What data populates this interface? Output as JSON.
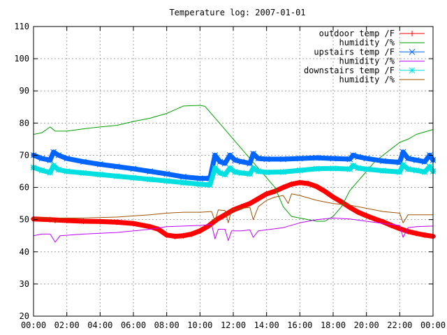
{
  "chart_data": {
    "type": "line",
    "title": "Temperature log: 2007-01-01",
    "xlabel": "",
    "ylabel": "",
    "xlim": [
      0,
      24
    ],
    "ylim": [
      20,
      110
    ],
    "grid": true,
    "legend_position": "top-right",
    "x_tick_labels": [
      "00:00",
      "02:00",
      "04:00",
      "06:00",
      "08:00",
      "10:00",
      "12:00",
      "14:00",
      "16:00",
      "18:00",
      "20:00",
      "22:00",
      "00:00"
    ],
    "y_tick_labels": [
      "20",
      "30",
      "40",
      "50",
      "60",
      "70",
      "80",
      "90",
      "100",
      "110"
    ],
    "series": [
      {
        "name": "outdoor temp /F",
        "color": "#ff0000",
        "marker": "plus",
        "points": [
          [
            0,
            50.2
          ],
          [
            1,
            50
          ],
          [
            2,
            49.7
          ],
          [
            3,
            49.5
          ],
          [
            4,
            49.4
          ],
          [
            5,
            49.2
          ],
          [
            6,
            48.8
          ],
          [
            7,
            47.8
          ],
          [
            7.5,
            47
          ],
          [
            8,
            45.2
          ],
          [
            8.5,
            44.8
          ],
          [
            9,
            45
          ],
          [
            9.5,
            45.5
          ],
          [
            10,
            46.5
          ],
          [
            10.5,
            48
          ],
          [
            11,
            50
          ],
          [
            11.5,
            51.5
          ],
          [
            12,
            53
          ],
          [
            12.5,
            54
          ],
          [
            13,
            55
          ],
          [
            13.5,
            56.5
          ],
          [
            14,
            58
          ],
          [
            14.5,
            58.8
          ],
          [
            15,
            60
          ],
          [
            15.5,
            61
          ],
          [
            16,
            61.5
          ],
          [
            16.5,
            61.2
          ],
          [
            17,
            60.3
          ],
          [
            17.5,
            58.8
          ],
          [
            18,
            57
          ],
          [
            18.5,
            55.5
          ],
          [
            19,
            53.8
          ],
          [
            19.5,
            52.3
          ],
          [
            20,
            51.2
          ],
          [
            20.5,
            50.2
          ],
          [
            21,
            49.3
          ],
          [
            21.5,
            48.2
          ],
          [
            22,
            47.2
          ],
          [
            22.5,
            46.3
          ],
          [
            23,
            45.7
          ],
          [
            23.5,
            45.2
          ],
          [
            24,
            44.8
          ]
        ]
      },
      {
        "name": "humidity /%",
        "color": "#00a000",
        "marker": "none",
        "points": [
          [
            0,
            76.5
          ],
          [
            0.5,
            77
          ],
          [
            1,
            78.8
          ],
          [
            1.3,
            77.5
          ],
          [
            2,
            77.5
          ],
          [
            3,
            78.2
          ],
          [
            4,
            78.8
          ],
          [
            5,
            79.3
          ],
          [
            6,
            80.5
          ],
          [
            7,
            81.5
          ],
          [
            8,
            83
          ],
          [
            9,
            85.3
          ],
          [
            10,
            85.5
          ],
          [
            10.3,
            85.2
          ],
          [
            11,
            81
          ],
          [
            12,
            75
          ],
          [
            13,
            69
          ],
          [
            14,
            63
          ],
          [
            14.5,
            60
          ],
          [
            15,
            54
          ],
          [
            15.5,
            51
          ],
          [
            16,
            50.5
          ],
          [
            16.5,
            50
          ],
          [
            17,
            49.5
          ],
          [
            17.5,
            49.5
          ],
          [
            18,
            51
          ],
          [
            18.5,
            54
          ],
          [
            19,
            59
          ],
          [
            19.5,
            62
          ],
          [
            20,
            65
          ],
          [
            20.5,
            68
          ],
          [
            21,
            70
          ],
          [
            21.5,
            72
          ],
          [
            22,
            74
          ],
          [
            22.5,
            75
          ],
          [
            23,
            76.5
          ],
          [
            24,
            78
          ]
        ]
      },
      {
        "name": "upstairs temp /F",
        "color": "#0064ff",
        "marker": "x",
        "points": [
          [
            0,
            70
          ],
          [
            0.5,
            69
          ],
          [
            1,
            68.5
          ],
          [
            1.2,
            71
          ],
          [
            1.5,
            70
          ],
          [
            2,
            69
          ],
          [
            3,
            68
          ],
          [
            4,
            67.2
          ],
          [
            5,
            66.5
          ],
          [
            6,
            65.8
          ],
          [
            7,
            65
          ],
          [
            8,
            64.2
          ],
          [
            9,
            63.3
          ],
          [
            10,
            62.8
          ],
          [
            10.6,
            62.8
          ],
          [
            10.9,
            70
          ],
          [
            11.2,
            68
          ],
          [
            11.5,
            67.5
          ],
          [
            11.8,
            70
          ],
          [
            12.1,
            68.5
          ],
          [
            12.5,
            68
          ],
          [
            13,
            67.5
          ],
          [
            13.2,
            70.5
          ],
          [
            13.5,
            69
          ],
          [
            14,
            68.8
          ],
          [
            15,
            68.8
          ],
          [
            16,
            69
          ],
          [
            17,
            69.2
          ],
          [
            18,
            69
          ],
          [
            19,
            68.8
          ],
          [
            19.2,
            70
          ],
          [
            19.5,
            69.5
          ],
          [
            20,
            69
          ],
          [
            21,
            68.2
          ],
          [
            22,
            67.8
          ],
          [
            22.2,
            71
          ],
          [
            22.5,
            69
          ],
          [
            23,
            68.5
          ],
          [
            23.5,
            68
          ],
          [
            23.8,
            70
          ],
          [
            24,
            68.5
          ]
        ]
      },
      {
        "name": "humidity /%",
        "color": "#c000ff",
        "marker": "none",
        "points": [
          [
            0,
            45
          ],
          [
            0.5,
            45.5
          ],
          [
            1,
            45.5
          ],
          [
            1.3,
            43
          ],
          [
            1.6,
            45
          ],
          [
            3,
            45.5
          ],
          [
            5,
            46
          ],
          [
            7,
            47
          ],
          [
            8,
            47.8
          ],
          [
            9,
            48
          ],
          [
            10,
            48.2
          ],
          [
            10.7,
            48.5
          ],
          [
            10.9,
            44
          ],
          [
            11.1,
            47
          ],
          [
            11.5,
            47
          ],
          [
            11.7,
            43.5
          ],
          [
            11.9,
            46.5
          ],
          [
            12.5,
            46.5
          ],
          [
            13,
            46.8
          ],
          [
            13.2,
            44.5
          ],
          [
            13.5,
            46.5
          ],
          [
            15,
            47.5
          ],
          [
            16,
            49
          ],
          [
            17,
            50
          ],
          [
            18,
            50.5
          ],
          [
            19,
            50.2
          ],
          [
            20,
            49.5
          ],
          [
            21,
            48.8
          ],
          [
            22,
            48.2
          ],
          [
            22.2,
            44.5
          ],
          [
            22.5,
            47.5
          ],
          [
            23,
            47.8
          ],
          [
            24,
            48
          ]
        ]
      },
      {
        "name": "downstairs temp /F",
        "color": "#00e0e0",
        "marker": "asterisk",
        "points": [
          [
            0,
            66.2
          ],
          [
            0.5,
            65.3
          ],
          [
            1,
            64.6
          ],
          [
            1.2,
            66.8
          ],
          [
            1.5,
            65.5
          ],
          [
            2,
            65
          ],
          [
            3,
            64.5
          ],
          [
            4,
            64
          ],
          [
            5,
            63.5
          ],
          [
            6,
            63
          ],
          [
            7,
            62.5
          ],
          [
            8,
            62
          ],
          [
            9,
            61.5
          ],
          [
            10,
            61
          ],
          [
            10.6,
            60.8
          ],
          [
            10.9,
            66
          ],
          [
            11.2,
            64.5
          ],
          [
            11.5,
            64
          ],
          [
            11.8,
            66
          ],
          [
            12.1,
            64.8
          ],
          [
            12.5,
            64.5
          ],
          [
            13,
            64.2
          ],
          [
            13.2,
            66
          ],
          [
            13.5,
            65
          ],
          [
            14,
            64.7
          ],
          [
            15,
            64.8
          ],
          [
            16,
            65.3
          ],
          [
            17,
            65.8
          ],
          [
            18,
            65.9
          ],
          [
            19,
            65.7
          ],
          [
            19.2,
            66.8
          ],
          [
            19.5,
            66
          ],
          [
            20,
            65.7
          ],
          [
            21,
            65.2
          ],
          [
            22,
            64.8
          ],
          [
            22.2,
            67
          ],
          [
            22.5,
            65.7
          ],
          [
            23,
            65.3
          ],
          [
            23.5,
            64.8
          ],
          [
            23.8,
            66.5
          ],
          [
            24,
            65
          ]
        ]
      },
      {
        "name": "humidity /%",
        "color": "#a05000",
        "marker": "none",
        "points": [
          [
            0,
            50.5
          ],
          [
            1,
            50.5
          ],
          [
            1.3,
            49
          ],
          [
            1.6,
            50.5
          ],
          [
            3,
            50.5
          ],
          [
            5,
            50.8
          ],
          [
            7,
            51.5
          ],
          [
            8,
            52
          ],
          [
            9,
            52.3
          ],
          [
            10,
            52.3
          ],
          [
            10.7,
            52.5
          ],
          [
            10.9,
            49.5
          ],
          [
            11.1,
            53
          ],
          [
            11.5,
            52.8
          ],
          [
            11.7,
            49
          ],
          [
            11.9,
            53
          ],
          [
            12.5,
            53.5
          ],
          [
            13,
            53.8
          ],
          [
            13.2,
            50
          ],
          [
            13.5,
            54
          ],
          [
            14,
            56
          ],
          [
            14.5,
            57
          ],
          [
            15,
            57.5
          ],
          [
            15.3,
            55
          ],
          [
            15.5,
            58
          ],
          [
            16,
            57.5
          ],
          [
            17,
            56
          ],
          [
            18,
            55
          ],
          [
            19,
            54.5
          ],
          [
            20,
            53.5
          ],
          [
            21,
            52.5
          ],
          [
            22,
            52
          ],
          [
            22.2,
            49
          ],
          [
            22.5,
            51.5
          ],
          [
            23,
            51.5
          ],
          [
            24,
            51.5
          ]
        ]
      }
    ]
  }
}
